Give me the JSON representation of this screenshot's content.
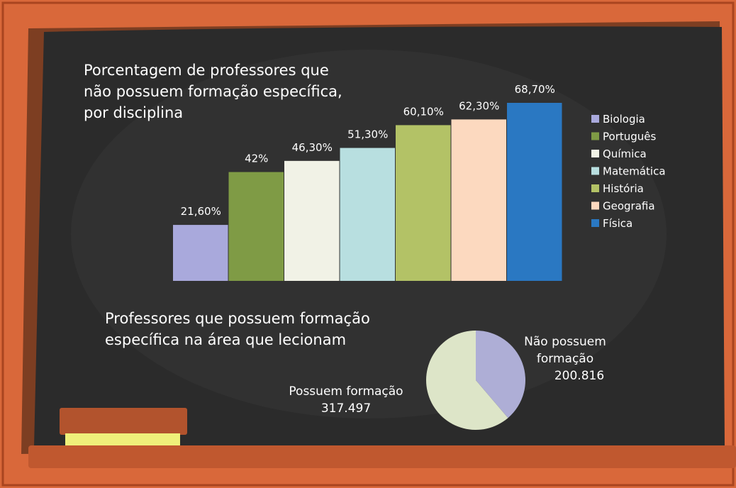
{
  "chart_data": [
    {
      "type": "bar",
      "title": "Porcentagem de professores que\nnão possuem formação específica,\npor disciplina",
      "categories": [
        "Biologia",
        "Português",
        "Química",
        "Matemática",
        "História",
        "Geografia",
        "Física"
      ],
      "values": [
        21.6,
        42,
        46.3,
        51.3,
        60.1,
        62.3,
        68.7
      ],
      "value_labels": [
        "21,60%",
        "42%",
        "46,30%",
        "51,30%",
        "60,10%",
        "62,30%",
        "68,70%"
      ],
      "colors": [
        "#a9a9dc",
        "#7f9b45",
        "#f1f2e6",
        "#b8dfe0",
        "#b3c266",
        "#fcd9bf",
        "#2a78c2"
      ],
      "legend": "right"
    },
    {
      "type": "pie",
      "title": "Professores que possuem formação\nespecífica na área que lecionam",
      "categories": [
        "Possuem formação",
        "Não possuem\nformação"
      ],
      "values": [
        317497,
        200816
      ],
      "value_labels": [
        "317.497",
        "200.816"
      ],
      "colors": [
        "#dde5c8",
        "#aeaed6"
      ]
    }
  ]
}
